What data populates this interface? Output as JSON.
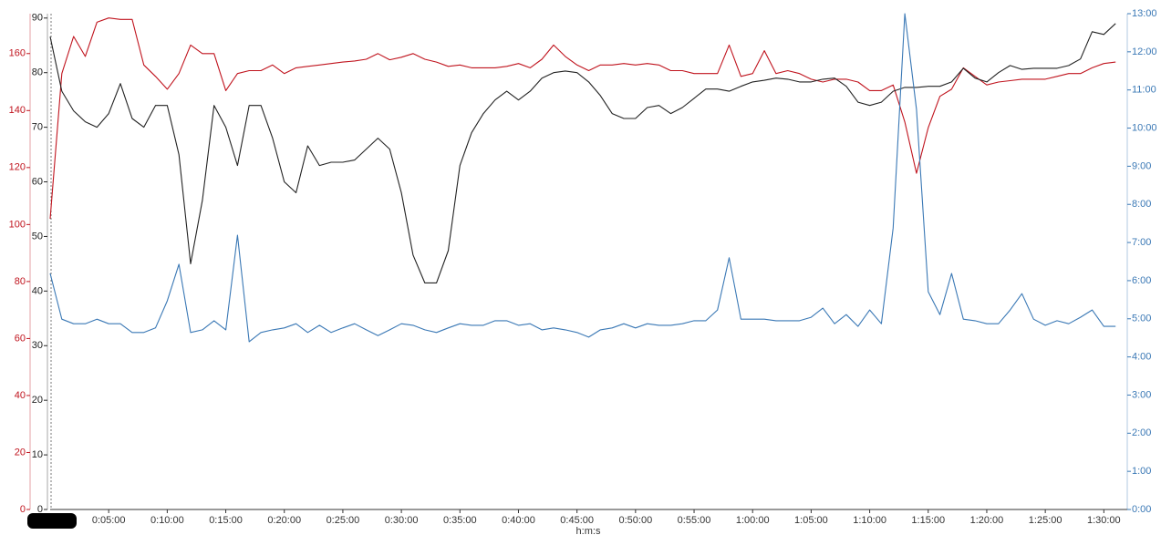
{
  "chart_data": {
    "type": "line",
    "x_label": "h:m:s",
    "x": [
      0,
      1,
      2,
      3,
      4,
      5,
      6,
      7,
      8,
      9,
      10,
      11,
      12,
      13,
      14,
      15,
      16,
      17,
      18,
      19,
      20,
      21,
      22,
      23,
      24,
      25,
      26,
      27,
      28,
      29,
      30,
      31,
      32,
      33,
      34,
      35,
      36,
      37,
      38,
      39,
      40,
      41,
      42,
      43,
      44,
      45,
      46,
      47,
      48,
      49,
      50,
      51,
      52,
      53,
      54,
      55,
      56,
      57,
      58,
      59,
      60,
      61,
      62,
      63,
      64,
      65,
      66,
      67,
      68,
      69,
      70,
      71,
      72,
      73,
      74,
      75,
      76,
      77,
      78,
      79,
      80,
      81,
      82,
      83,
      84,
      85,
      86,
      87,
      88,
      89,
      90,
      91
    ],
    "xlim": [
      0,
      92
    ],
    "xticks": [
      {
        "value": 5,
        "label": "0:05:00"
      },
      {
        "value": 10,
        "label": "0:10:00"
      },
      {
        "value": 15,
        "label": "0:15:00"
      },
      {
        "value": 20,
        "label": "0:20:00"
      },
      {
        "value": 25,
        "label": "0:25:00"
      },
      {
        "value": 30,
        "label": "0:30:00"
      },
      {
        "value": 35,
        "label": "0:35:00"
      },
      {
        "value": 40,
        "label": "0:40:00"
      },
      {
        "value": 45,
        "label": "0:45:00"
      },
      {
        "value": 50,
        "label": "0:50:00"
      },
      {
        "value": 55,
        "label": "0:55:00"
      },
      {
        "value": 60,
        "label": "1:00:00"
      },
      {
        "value": 65,
        "label": "1:05:00"
      },
      {
        "value": 70,
        "label": "1:10:00"
      },
      {
        "value": 75,
        "label": "1:15:00"
      },
      {
        "value": 80,
        "label": "1:20:00"
      },
      {
        "value": 85,
        "label": "1:25:00"
      },
      {
        "value": 90,
        "label": "1:30:00"
      }
    ],
    "ylim": [
      0,
      90.8
    ],
    "yticks": [
      0,
      10,
      20,
      30,
      40,
      50,
      60,
      70,
      80,
      90
    ],
    "y2lim": [
      0,
      13
    ],
    "y2ticks": [
      {
        "value": 0,
        "label": "0:00"
      },
      {
        "value": 1,
        "label": "1:00"
      },
      {
        "value": 2,
        "label": "2:00"
      },
      {
        "value": 3,
        "label": "3:00"
      },
      {
        "value": 4,
        "label": "4:00"
      },
      {
        "value": 5,
        "label": "5:00"
      },
      {
        "value": 6,
        "label": "6:00"
      },
      {
        "value": 7,
        "label": "7:00"
      },
      {
        "value": 8,
        "label": "8:00"
      },
      {
        "value": 9,
        "label": "9:00"
      },
      {
        "value": 10,
        "label": "10:00"
      },
      {
        "value": 11,
        "label": "11:00"
      },
      {
        "value": 12,
        "label": "12:00"
      },
      {
        "value": 13,
        "label": "13:00"
      }
    ],
    "y3lim": [
      0,
      174
    ],
    "y3ticks": [
      0,
      20,
      40,
      60,
      80,
      100,
      120,
      140,
      160
    ],
    "series": [
      {
        "axis": "y3",
        "color": "#c0141e",
        "values": [
          102,
          153,
          166,
          159,
          171,
          172.5,
          172,
          172,
          156,
          152,
          147.5,
          153,
          163,
          160,
          160,
          147,
          153,
          154,
          154,
          156,
          153,
          155,
          155.5,
          156,
          156.5,
          157,
          157.4,
          158,
          160,
          157.8,
          158.7,
          160,
          158,
          157,
          155.5,
          156,
          155,
          155,
          155,
          155.5,
          156.5,
          155,
          158,
          163,
          159,
          156,
          154,
          156,
          156,
          156.5,
          156,
          156.5,
          156,
          154,
          154,
          153,
          153,
          153,
          163,
          152,
          153,
          161,
          153,
          154,
          153,
          151,
          150,
          151,
          151,
          150,
          147,
          147,
          149,
          136,
          118,
          134,
          145,
          147.5,
          155,
          152,
          149,
          150,
          150.5,
          151,
          151,
          151,
          152,
          153,
          153,
          155,
          156.5,
          157
        ]
      },
      {
        "axis": "y",
        "color": "#222222",
        "values": [
          86.6,
          76.6,
          73,
          71,
          70,
          72.5,
          78,
          71.6,
          70,
          74,
          74,
          65,
          45,
          56.6,
          74,
          70,
          63,
          74,
          74,
          68,
          60,
          58,
          66.6,
          63,
          63.6,
          63.6,
          64,
          66,
          68,
          66,
          58,
          46.6,
          41.5,
          41.5,
          47.4,
          63,
          69,
          72.5,
          75,
          76.6,
          75,
          76.6,
          79,
          80,
          80.3,
          80,
          78.3,
          75.8,
          72.5,
          71.6,
          71.6,
          73.6,
          74,
          72.5,
          73.6,
          75.3,
          77,
          77,
          76.6,
          77.5,
          78.3,
          78.6,
          79,
          78.8,
          78.3,
          78.3,
          78.8,
          79,
          77.5,
          74.6,
          74,
          74.6,
          76.6,
          77.3,
          77.3,
          77.5,
          77.5,
          78.3,
          80.8,
          79,
          78.3,
          80,
          81.3,
          80.6,
          80.8,
          80.8,
          80.8,
          81.3,
          82.5,
          87.5,
          87,
          89
        ]
      },
      {
        "axis": "y2",
        "color": "#3a78b5",
        "values": [
          6.19,
          4.99,
          4.87,
          4.87,
          4.99,
          4.87,
          4.87,
          4.64,
          4.64,
          4.76,
          5.47,
          6.43,
          4.64,
          4.71,
          4.95,
          4.71,
          7.19,
          4.4,
          4.64,
          4.71,
          4.76,
          4.87,
          4.64,
          4.83,
          4.64,
          4.76,
          4.87,
          4.71,
          4.56,
          4.71,
          4.87,
          4.83,
          4.71,
          4.64,
          4.76,
          4.87,
          4.83,
          4.83,
          4.95,
          4.95,
          4.83,
          4.87,
          4.71,
          4.76,
          4.71,
          4.64,
          4.52,
          4.71,
          4.76,
          4.87,
          4.76,
          4.87,
          4.83,
          4.83,
          4.87,
          4.95,
          4.95,
          5.23,
          6.6,
          4.99,
          4.99,
          4.99,
          4.95,
          4.95,
          4.95,
          5.04,
          5.28,
          4.87,
          5.11,
          4.8,
          5.23,
          4.87,
          7.38,
          13,
          10.49,
          5.71,
          5.11,
          6.19,
          4.99,
          4.95,
          4.87,
          4.87,
          5.23,
          5.66,
          4.99,
          4.83,
          4.95,
          4.87,
          5.04,
          5.23,
          4.8,
          4.8
        ]
      }
    ]
  }
}
